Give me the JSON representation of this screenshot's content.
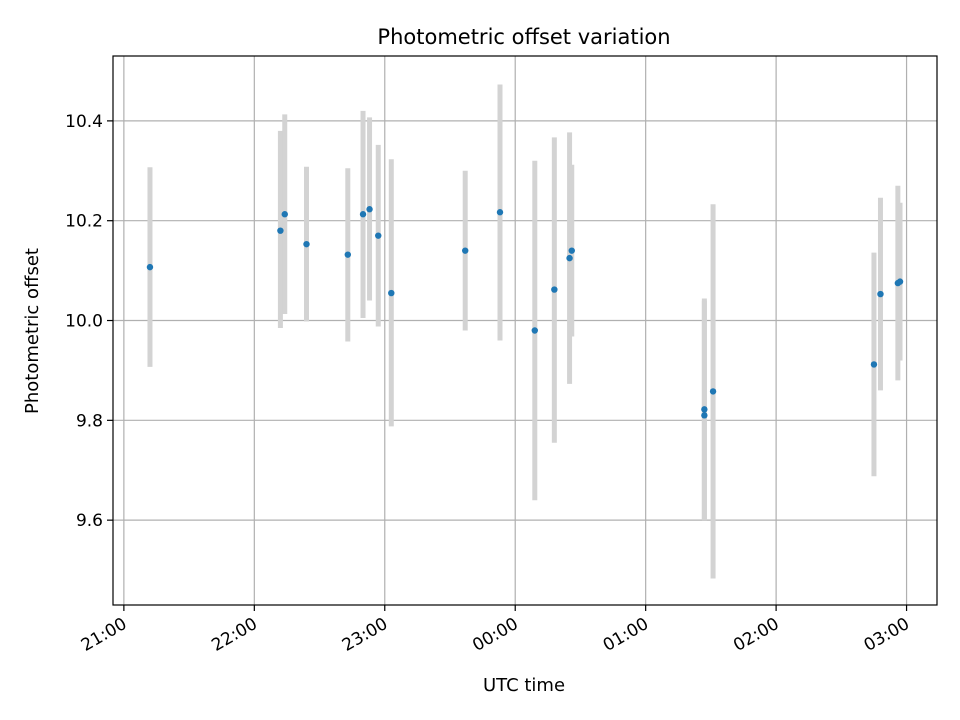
{
  "chart_data": {
    "type": "scatter",
    "title": "Photometric offset variation",
    "xlabel": "UTC time",
    "ylabel": "Photometric offset",
    "x_axis": {
      "kind": "time",
      "ticks": [
        "21:00",
        "22:00",
        "23:00",
        "00:00",
        "01:00",
        "02:00",
        "03:00"
      ],
      "range": [
        "20:55",
        "03:14"
      ]
    },
    "y_axis": {
      "ticks": [
        "9.6",
        "9.8",
        "10.0",
        "10.2",
        "10.4"
      ],
      "range": [
        9.43,
        10.53
      ]
    },
    "grid": true,
    "colors": {
      "marker": "#1f77b4",
      "errorbar": "#d3d3d3",
      "grid": "#b0b0b0"
    },
    "series": [
      {
        "points": [
          {
            "x": "21:12",
            "y": 10.107,
            "low": 9.907,
            "high": 10.307
          },
          {
            "x": "22:12",
            "y": 10.18,
            "low": 9.985,
            "high": 10.38
          },
          {
            "x": "22:14",
            "y": 10.213,
            "low": 10.013,
            "high": 10.413
          },
          {
            "x": "22:24",
            "y": 10.153,
            "low": 9.998,
            "high": 10.308
          },
          {
            "x": "22:43",
            "y": 10.132,
            "low": 9.958,
            "high": 10.305
          },
          {
            "x": "22:50",
            "y": 10.213,
            "low": 10.005,
            "high": 10.42
          },
          {
            "x": "22:53",
            "y": 10.223,
            "low": 10.04,
            "high": 10.407
          },
          {
            "x": "22:57",
            "y": 10.17,
            "low": 9.988,
            "high": 10.352
          },
          {
            "x": "23:03",
            "y": 10.055,
            "low": 9.788,
            "high": 10.323
          },
          {
            "x": "23:37",
            "y": 10.14,
            "low": 9.98,
            "high": 10.3
          },
          {
            "x": "23:53",
            "y": 10.217,
            "low": 9.96,
            "high": 10.473
          },
          {
            "x": "00:09",
            "y": 9.98,
            "low": 9.64,
            "high": 10.32
          },
          {
            "x": "00:18",
            "y": 10.062,
            "low": 9.755,
            "high": 10.367
          },
          {
            "x": "00:25",
            "y": 10.125,
            "low": 9.873,
            "high": 10.377
          },
          {
            "x": "00:26",
            "y": 10.14,
            "low": 9.968,
            "high": 10.312
          },
          {
            "x": "01:27",
            "y": 9.81,
            "low": 9.6,
            "high": 10.04
          },
          {
            "x": "01:27",
            "y": 9.822,
            "low": 9.6,
            "high": 10.044
          },
          {
            "x": "01:31",
            "y": 9.858,
            "low": 9.483,
            "high": 10.233
          },
          {
            "x": "02:45",
            "y": 9.912,
            "low": 9.688,
            "high": 10.136
          },
          {
            "x": "02:48",
            "y": 10.053,
            "low": 9.86,
            "high": 10.246
          },
          {
            "x": "02:56",
            "y": 10.075,
            "low": 9.88,
            "high": 10.27
          },
          {
            "x": "02:57",
            "y": 10.078,
            "low": 9.92,
            "high": 10.236
          }
        ]
      }
    ]
  }
}
